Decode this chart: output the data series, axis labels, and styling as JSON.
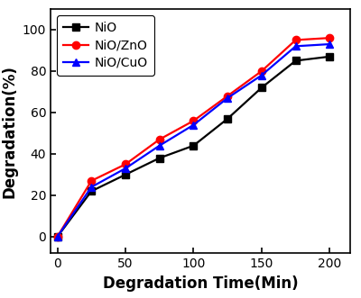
{
  "NiO": {
    "x": [
      0,
      25,
      50,
      75,
      100,
      125,
      150,
      175,
      200
    ],
    "y": [
      0,
      22,
      30,
      38,
      44,
      57,
      72,
      85,
      87
    ]
  },
  "NiO/ZnO": {
    "x": [
      0,
      25,
      50,
      75,
      100,
      125,
      150,
      175,
      200
    ],
    "y": [
      0,
      27,
      35,
      47,
      56,
      68,
      80,
      95,
      96
    ]
  },
  "NiO/CuO": {
    "x": [
      0,
      25,
      50,
      75,
      100,
      125,
      150,
      175,
      200
    ],
    "y": [
      0,
      24,
      33,
      44,
      54,
      67,
      78,
      92,
      93
    ]
  },
  "colors": {
    "NiO": "#000000",
    "NiO/ZnO": "#ff0000",
    "NiO/CuO": "#0000ff"
  },
  "markers": {
    "NiO": "s",
    "NiO/ZnO": "o",
    "NiO/CuO": "^"
  },
  "xlabel": "Degradation Time(Min)",
  "ylabel": "Degradation(%)",
  "xlim": [
    -5,
    215
  ],
  "ylim": [
    -8,
    110
  ],
  "xticks": [
    0,
    50,
    100,
    150,
    200
  ],
  "yticks": [
    0,
    20,
    40,
    60,
    80,
    100
  ],
  "linewidth": 1.6,
  "markersize": 6,
  "xlabel_fontsize": 12,
  "ylabel_fontsize": 12,
  "tick_fontsize": 10,
  "legend_fontsize": 10
}
